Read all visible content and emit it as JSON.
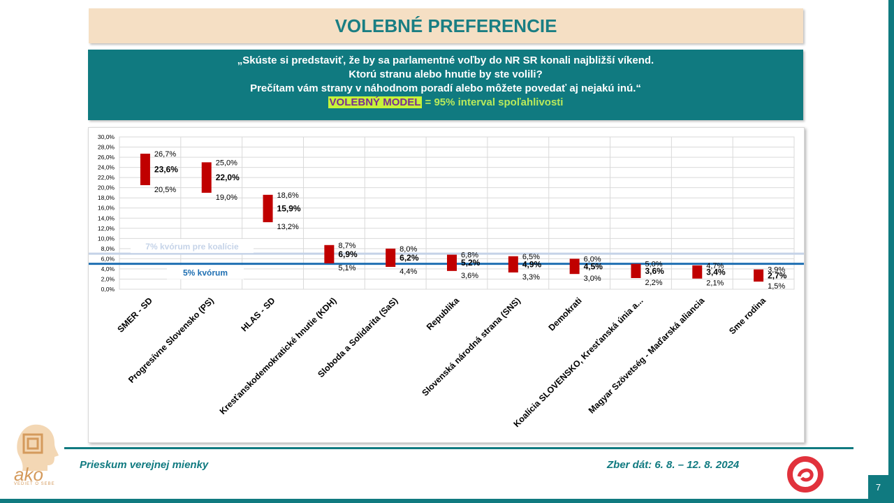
{
  "title": "VOLEBNÉ PREFERENCIE",
  "question": {
    "line1": "„Skúste si predstaviť, že by sa parlamentné voľby do NR SR konali najbližší víkend.",
    "line2": "Ktorú stranu alebo hnutie by ste volili?",
    "line3": "Prečítam vám strany v náhodnom poradí alebo môžete povedať aj nejakú inú.“",
    "model_label": "VOLEBNÝ MODEL",
    "model_rest": " = 95% interval spoľahlivosti"
  },
  "footer": {
    "left": "Prieskum verejnej mienky",
    "right": "Zber dát: 6. 8. – 12. 8. 2024",
    "page": "7",
    "logo_tagline": "VEDIEŤ O SEBE"
  },
  "colors": {
    "teal": "#107a80",
    "bar": "#c00000",
    "quorum5": "#1f6fb2",
    "quorum7": "#c5d3e8"
  },
  "chart_data": {
    "type": "bar",
    "subtype": "interval",
    "categories": [
      "SMER - SD",
      "Progresívne Slovensko (PS)",
      "HLAS - SD",
      "Kresťanskodemokratické hnutie (KDH)",
      "Sloboda a Solidarita (SaS)",
      "Republika",
      "Slovenská národná strana (SNS)",
      "Demokrati",
      "Koalícia SLOVENSKO, Kresťanská únia a...",
      "Magyar Szövetség - Maďarská aliancia",
      "Sme rodina"
    ],
    "series": [
      {
        "name": "",
        "values": [
          26.7,
          25.0,
          18.6,
          8.7,
          8.0,
          6.8,
          6.5,
          6.0,
          5.0,
          4.7,
          3.9
        ]
      },
      {
        "name": "",
        "values": [
          23.6,
          22.0,
          15.9,
          6.9,
          6.2,
          5.2,
          4.9,
          4.5,
          3.6,
          3.4,
          2.7
        ]
      },
      {
        "name": "",
        "values": [
          20.5,
          19.0,
          13.2,
          5.1,
          4.4,
          3.6,
          3.3,
          3.0,
          2.2,
          2.1,
          1.5
        ]
      }
    ],
    "high_labels": [
      "26,7%",
      "25,0%",
      "18,6%",
      "8,7%",
      "8,0%",
      "6,8%",
      "6,5%",
      "6,0%",
      "5,0%",
      "4,7%",
      "3,9%"
    ],
    "mid_labels": [
      "23,6%",
      "22,0%",
      "15,9%",
      "6,9%",
      "6,2%",
      "5,2%",
      "4,9%",
      "4,5%",
      "3,6%",
      "3,4%",
      "2,7%"
    ],
    "low_labels": [
      "20,5%",
      "19,0%",
      "13,2%",
      "5,1%",
      "4,4%",
      "3,6%",
      "3,3%",
      "3,0%",
      "2,2%",
      "2,1%",
      "1,5%"
    ],
    "ylim": [
      0,
      30
    ],
    "ytick_step": 2,
    "ytick_labels": [
      "0,0%",
      "2,0%",
      "4,0%",
      "6,0%",
      "8,0%",
      "10,0%",
      "12,0%",
      "14,0%",
      "16,0%",
      "18,0%",
      "20,0%",
      "22,0%",
      "24,0%",
      "26,0%",
      "28,0%",
      "30,0%"
    ],
    "grid": true,
    "reference_lines": [
      {
        "value": 7,
        "label": "7% kvórum pre koalície"
      },
      {
        "value": 5,
        "label": "5% kvórum"
      }
    ]
  }
}
